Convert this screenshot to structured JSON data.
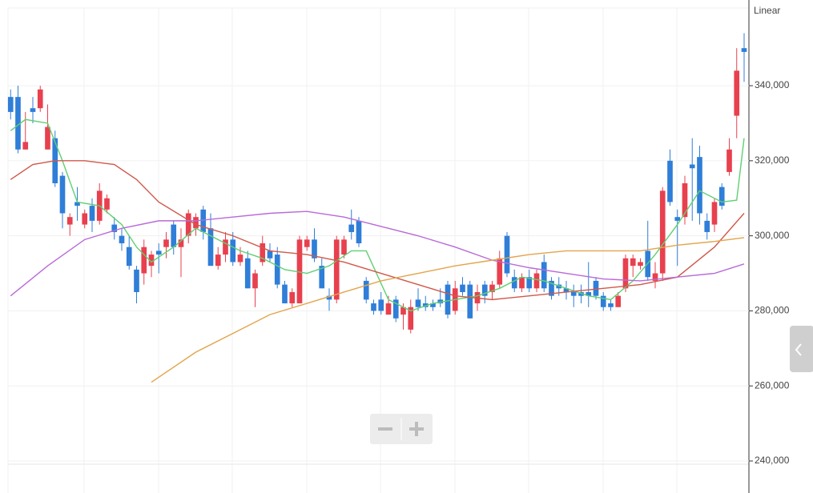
{
  "chart_data": {
    "type": "candlestick",
    "scale_label": "Linear",
    "up_color": "#e8404e",
    "down_color": "#2f7ed8",
    "open": [
      337000,
      337000,
      323000,
      334000,
      334000,
      323000,
      326000,
      316000,
      303000,
      309000,
      303000,
      308000,
      304000,
      307000,
      303000,
      300000,
      297000,
      291000,
      290000,
      292000,
      296000,
      297000,
      303000,
      297000,
      300000,
      302000,
      307000,
      302000,
      292000,
      295000,
      299000,
      293000,
      294000,
      286000,
      293000,
      296000,
      295000,
      287000,
      282000,
      282000,
      297000,
      299000,
      292000,
      284000,
      283000,
      295000,
      303000,
      304000,
      288000,
      282000,
      283000,
      279000,
      283000,
      279000,
      275000,
      283000,
      282000,
      282000,
      283000,
      287000,
      280000,
      287000,
      287000,
      282000,
      287000,
      285000,
      287000,
      300000,
      289000,
      286000,
      289000,
      286000,
      293000,
      288000,
      287000,
      286000,
      285000,
      285000,
      285000,
      288000,
      284000,
      282000,
      281000,
      286000,
      292000,
      292000,
      296000,
      288000,
      290000,
      320000,
      305000,
      305000,
      319000,
      321000,
      304000,
      303000,
      313000,
      317000,
      332000,
      350000
    ],
    "high": [
      339000,
      340000,
      333000,
      337000,
      340000,
      335000,
      328000,
      317000,
      306000,
      313000,
      307000,
      310000,
      314000,
      311000,
      305000,
      302000,
      300000,
      292000,
      299000,
      296000,
      298000,
      301000,
      304000,
      302000,
      307000,
      306000,
      308000,
      306000,
      297000,
      301000,
      301000,
      297000,
      296000,
      291000,
      300000,
      298000,
      297000,
      288000,
      286000,
      300000,
      300000,
      302000,
      294000,
      286000,
      300000,
      300000,
      307000,
      305000,
      289000,
      283000,
      285000,
      284000,
      284000,
      282000,
      283000,
      286000,
      284000,
      283000,
      286000,
      288000,
      288000,
      289000,
      288000,
      287000,
      288000,
      288000,
      296000,
      301000,
      291000,
      290000,
      291000,
      291000,
      295000,
      289000,
      289000,
      288000,
      287000,
      287000,
      293000,
      289000,
      285000,
      283000,
      285000,
      295000,
      295000,
      294000,
      304000,
      293000,
      313000,
      323000,
      307000,
      316000,
      326000,
      324000,
      306000,
      310000,
      314000,
      326000,
      350000,
      354000
    ],
    "low": [
      331000,
      322000,
      323000,
      330000,
      333000,
      323000,
      313000,
      302000,
      300000,
      304000,
      302000,
      301000,
      303000,
      306000,
      299000,
      296000,
      291000,
      282000,
      287000,
      289000,
      290000,
      294000,
      295000,
      289000,
      298000,
      300000,
      299000,
      292000,
      291000,
      293000,
      292000,
      292000,
      286000,
      281000,
      292000,
      293000,
      286000,
      282000,
      281000,
      282000,
      296000,
      293000,
      286000,
      280000,
      282000,
      294000,
      299000,
      297000,
      282000,
      279000,
      279000,
      279000,
      277000,
      275000,
      274000,
      280000,
      280000,
      280000,
      281000,
      278000,
      279000,
      284000,
      278000,
      280000,
      282000,
      283000,
      286000,
      289000,
      285000,
      285000,
      285000,
      285000,
      285000,
      283000,
      284000,
      283000,
      281000,
      282000,
      281000,
      283000,
      280000,
      280000,
      281000,
      285000,
      289000,
      291000,
      288000,
      286000,
      288000,
      308000,
      292000,
      303000,
      304000,
      303000,
      299000,
      301000,
      307000,
      316000,
      326000,
      341000
    ],
    "close": [
      333000,
      323000,
      325000,
      333000,
      339000,
      329000,
      314000,
      306000,
      305000,
      308000,
      306000,
      304000,
      312000,
      310000,
      301000,
      298000,
      292000,
      285000,
      297000,
      295000,
      295000,
      299000,
      297000,
      299000,
      306000,
      305000,
      301000,
      292000,
      295000,
      299000,
      293000,
      295000,
      286000,
      290000,
      298000,
      294000,
      287000,
      282000,
      285000,
      299000,
      299000,
      294000,
      286000,
      283000,
      299000,
      299000,
      301000,
      298000,
      283000,
      280000,
      280000,
      282000,
      278000,
      281000,
      281000,
      281000,
      281000,
      281000,
      282000,
      279000,
      286000,
      285000,
      278000,
      285000,
      284000,
      287000,
      294000,
      290000,
      286000,
      289000,
      286000,
      290000,
      286000,
      284000,
      286000,
      285000,
      284000,
      284000,
      284000,
      284000,
      281000,
      281000,
      284000,
      294000,
      294000,
      293000,
      289000,
      290000,
      312000,
      309000,
      304000,
      314000,
      318000,
      306000,
      301000,
      309000,
      308000,
      323000,
      344000,
      349000
    ],
    "series": [
      {
        "color": "#5fcf72",
        "x": [
          0,
          2,
          5,
          7,
          9,
          12,
          15,
          17,
          19,
          22,
          25,
          28,
          31,
          34,
          37,
          40,
          43,
          46,
          48,
          51,
          54,
          57,
          60,
          63,
          66,
          69,
          72,
          75,
          78,
          81,
          84,
          87,
          90,
          93,
          96,
          98,
          99
        ],
        "values": [
          328000,
          331000,
          330000,
          320000,
          309000,
          308000,
          303000,
          297000,
          293000,
          297000,
          302000,
          299000,
          296000,
          294000,
          291000,
          290000,
          292000,
          296000,
          296000,
          283000,
          280000,
          282000,
          283000,
          284000,
          286000,
          289000,
          288000,
          286000,
          284000,
          283000,
          288000,
          295000,
          303000,
          312000,
          309000,
          309500,
          326000
        ]
      },
      {
        "color": "#d0584a",
        "x": [
          0,
          3,
          6,
          10,
          14,
          17,
          20,
          25,
          30,
          35,
          40,
          45,
          50,
          55,
          60,
          65,
          70,
          75,
          80,
          85,
          90,
          95,
          99
        ],
        "values": [
          315000,
          319000,
          320000,
          320000,
          319000,
          315000,
          309000,
          303000,
          300000,
          296000,
          295000,
          293000,
          290000,
          287000,
          284000,
          283000,
          284000,
          285000,
          286000,
          287000,
          289000,
          297000,
          306000
        ]
      },
      {
        "color": "#b86ad8",
        "x": [
          0,
          5,
          10,
          15,
          20,
          25,
          30,
          35,
          40,
          45,
          50,
          55,
          60,
          65,
          70,
          75,
          80,
          85,
          90,
          95,
          99
        ],
        "values": [
          284000,
          292000,
          299000,
          302000,
          304000,
          304000,
          305000,
          306000,
          306500,
          305000,
          302500,
          300000,
          297000,
          293500,
          291500,
          290000,
          288500,
          288000,
          289000,
          290000,
          292500
        ]
      },
      {
        "color": "#e3a44c",
        "x": [
          19,
          25,
          30,
          35,
          40,
          45,
          50,
          55,
          60,
          65,
          70,
          75,
          80,
          85,
          90,
          95,
          99
        ],
        "values": [
          261000,
          269000,
          274000,
          279000,
          282000,
          285000,
          288000,
          290000,
          292000,
          293500,
          295000,
          296000,
          296000,
          296000,
          297500,
          298500,
          299500
        ]
      }
    ],
    "xlim": [
      -0.35,
      99.65
    ],
    "ylim": [
      240000,
      360700
    ],
    "yticks": [
      {
        "value": 240000,
        "label": "240,000"
      },
      {
        "value": 260000,
        "label": "260,000"
      },
      {
        "value": 280000,
        "label": "280,000"
      },
      {
        "value": 300000,
        "label": "300,000"
      },
      {
        "value": 320000,
        "label": "320,000"
      },
      {
        "value": 340000,
        "label": "340,000"
      }
    ],
    "grid": true
  }
}
